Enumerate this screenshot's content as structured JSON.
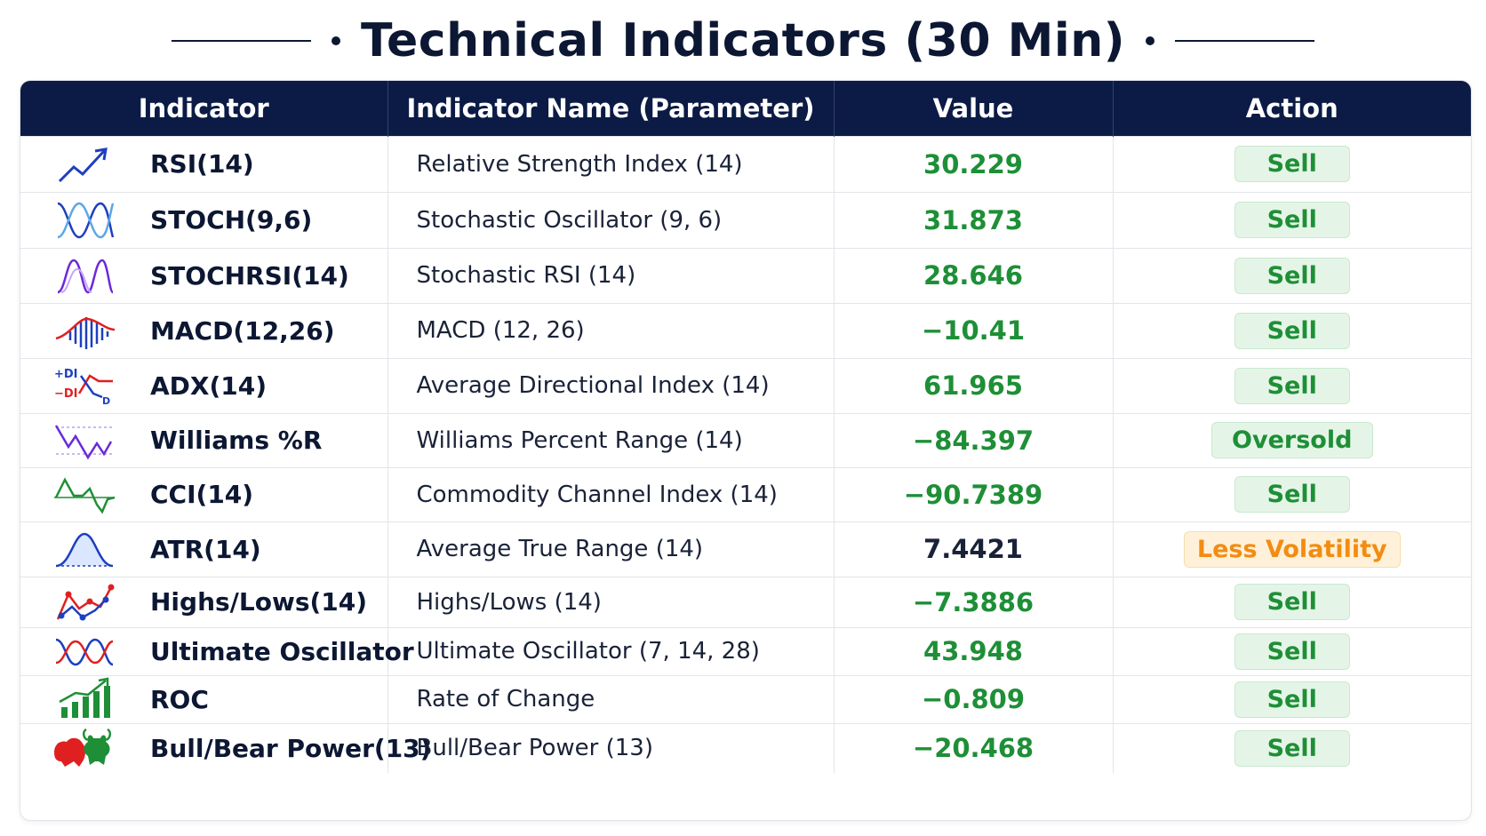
{
  "header": {
    "title": "Technical Indicators (30 Min)"
  },
  "table": {
    "columns": [
      "Indicator",
      "Indicator Name (Parameter)",
      "Value",
      "Action"
    ],
    "colors": {
      "header_bg": "#0b1b45",
      "positive": "#1e8f36",
      "neutral": "#1a2238",
      "warn": "#f28c12"
    },
    "rows": [
      {
        "icon": "line-up-icon",
        "indicator": "RSI(14)",
        "name": "Relative Strength Index (14)",
        "value": "30.229",
        "value_tone": "green",
        "action": "Sell",
        "action_tone": "green"
      },
      {
        "icon": "stochastic-wave-icon",
        "indicator": "STOCH(9,6)",
        "name": "Stochastic Oscillator (9, 6)",
        "value": "31.873",
        "value_tone": "green",
        "action": "Sell",
        "action_tone": "green"
      },
      {
        "icon": "stochrsi-wave-icon",
        "indicator": "STOCHRSI(14)",
        "name": "Stochastic RSI (14)",
        "value": "28.646",
        "value_tone": "green",
        "action": "Sell",
        "action_tone": "green"
      },
      {
        "icon": "macd-histogram-icon",
        "indicator": "MACD(12,26)",
        "name": "MACD (12, 26)",
        "value": "−10.41",
        "value_tone": "green",
        "action": "Sell",
        "action_tone": "green"
      },
      {
        "icon": "adx-di-icon",
        "indicator": "ADX(14)",
        "name": "Average Directional Index (14)",
        "value": "61.965",
        "value_tone": "green",
        "action": "Sell",
        "action_tone": "green"
      },
      {
        "icon": "williams-zigzag-icon",
        "indicator": "Williams %R",
        "name": "Williams Percent Range (14)",
        "value": "−84.397",
        "value_tone": "green",
        "action": "Oversold",
        "action_tone": "green"
      },
      {
        "icon": "cci-wave-icon",
        "indicator": "CCI(14)",
        "name": "Commodity Channel Index (14)",
        "value": "−90.7389",
        "value_tone": "green",
        "action": "Sell",
        "action_tone": "green"
      },
      {
        "icon": "atr-bell-icon",
        "indicator": "ATR(14)",
        "name": "Average True Range (14)",
        "value": "7.4421",
        "value_tone": "dark",
        "action": "Less Volatility",
        "action_tone": "orange"
      },
      {
        "icon": "highs-lows-icon",
        "indicator": "Highs/Lows(14)",
        "name": "Highs/Lows (14)",
        "value": "−7.3886",
        "value_tone": "green",
        "action": "Sell",
        "action_tone": "green"
      },
      {
        "icon": "ultimate-oscillator-icon",
        "indicator": "Ultimate Oscillator",
        "name": "Ultimate Oscillator (7, 14, 28)",
        "value": "43.948",
        "value_tone": "green",
        "action": "Sell",
        "action_tone": "green"
      },
      {
        "icon": "roc-bars-icon",
        "indicator": "ROC",
        "name": "Rate of Change",
        "value": "−0.809",
        "value_tone": "green",
        "action": "Sell",
        "action_tone": "green"
      },
      {
        "icon": "bull-bear-icon",
        "indicator": "Bull/Bear Power(13)",
        "name": "Bull/Bear Power (13)",
        "value": "−20.468",
        "value_tone": "green",
        "action": "Sell",
        "action_tone": "green"
      }
    ]
  }
}
